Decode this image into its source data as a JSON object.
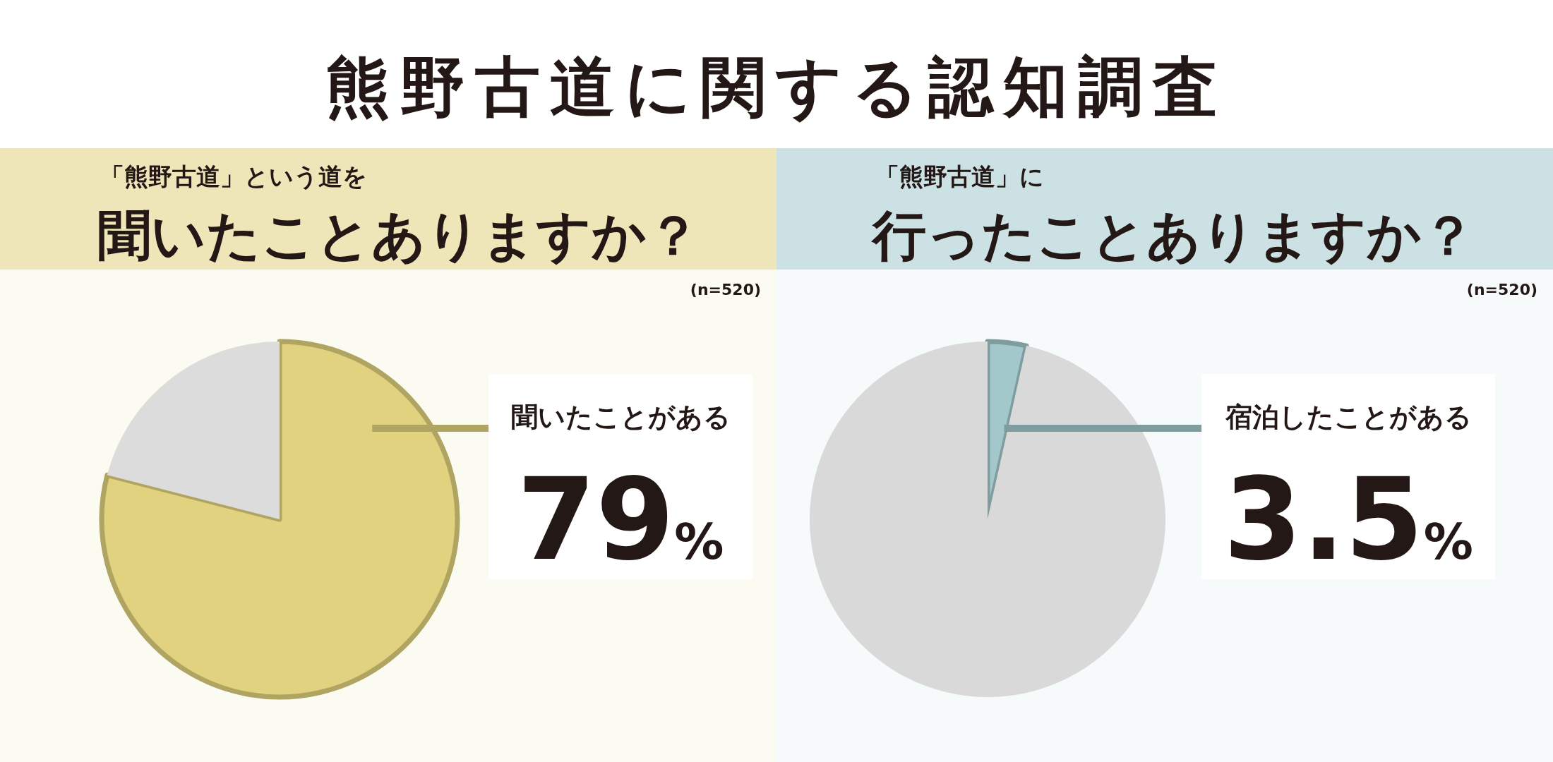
{
  "chart_data": [
    {
      "type": "other",
      "title": "熊野古道に関する認知調査"
    },
    {
      "type": "pie",
      "subtitle": "「熊野古道」という道を",
      "title": "聞いたことありますか？",
      "annotations": [
        "(n=520)"
      ],
      "categories": [
        "聞いたことがある",
        null
      ],
      "values": [
        79,
        21
      ],
      "colors": [
        "#e0d27e",
        "#dcdcdc"
      ],
      "value_labels": [
        "79%",
        null
      ]
    },
    {
      "type": "pie",
      "subtitle": "「熊野古道」に",
      "title": "行ったことありますか？",
      "annotations": [
        "(n=520)"
      ],
      "categories": [
        "宿泊したことがある",
        null
      ],
      "values": [
        3.5,
        96.5
      ],
      "colors": [
        "#a3c8cc",
        "#d9d9d9"
      ],
      "value_labels": [
        "3.5%",
        null
      ]
    }
  ]
}
